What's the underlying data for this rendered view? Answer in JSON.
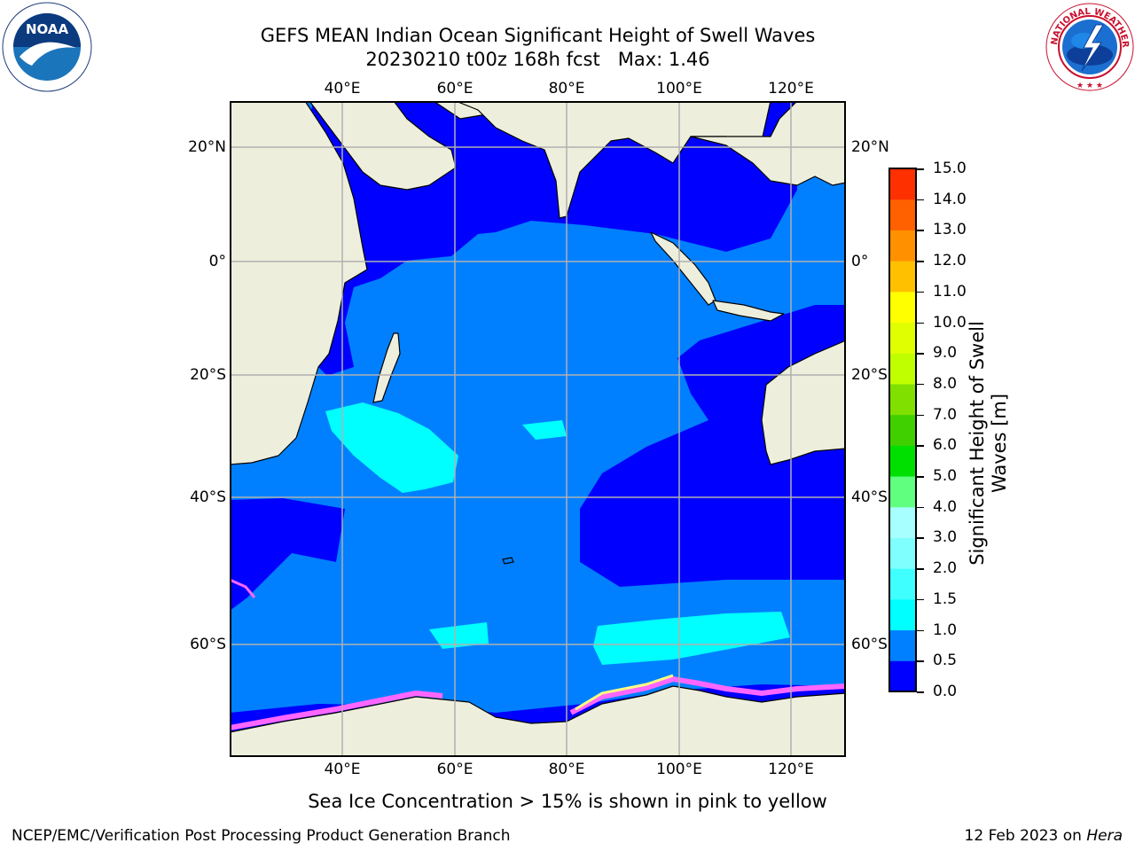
{
  "title": {
    "line1": "GEFS MEAN Indian Ocean Significant Height of Swell Waves",
    "line2": "20230210 t00z 168h fcst   Max: 1.46"
  },
  "logos": {
    "left": {
      "icon": "noaa-logo",
      "text": "NOAA",
      "ring_text": "NATIONAL OCEANIC AND ATMOSPHERIC ADMINISTRATION · U.S. DEPARTMENT OF COMMERCE"
    },
    "right": {
      "icon": "national-weather-service-logo",
      "ring_text": "NATIONAL WEATHER SERVICE"
    }
  },
  "map": {
    "lon_labels": [
      "40°E",
      "60°E",
      "80°E",
      "100°E",
      "120°E"
    ],
    "lat_labels": [
      "20°N",
      "0°",
      "20°S",
      "40°S",
      "60°S"
    ],
    "colors": {
      "land": "#eeeedd",
      "ocean_low": "#0000ff",
      "ocean_mid": "#0080ff",
      "ocean_high": "#00ffff",
      "grid": "#b0b0b0",
      "sea_ice": "#ff66ff"
    }
  },
  "colorbar": {
    "label": "Significant Height of Swell\nWaves [m]",
    "ticks": [
      "0.0",
      "0.5",
      "1.0",
      "1.5",
      "2.0",
      "3.0",
      "4.0",
      "5.0",
      "6.0",
      "7.0",
      "8.0",
      "9.0",
      "10.0",
      "11.0",
      "12.0",
      "13.0",
      "14.0",
      "15.0"
    ],
    "colors": [
      "#0000ff",
      "#0080ff",
      "#00ffff",
      "#40ffff",
      "#80ffff",
      "#a8ffff",
      "#60ff80",
      "#00e000",
      "#40d000",
      "#80e000",
      "#c0ff00",
      "#e0ff00",
      "#ffff00",
      "#ffc000",
      "#ff9000",
      "#ff6000",
      "#ff3000",
      "#ff0000"
    ]
  },
  "caption": "Sea Ice Concentration > 15% is shown in pink to yellow",
  "footer": {
    "left": "NCEP/EMC/Verification Post Processing Product Generation Branch",
    "date": "12 Feb 2023 on ",
    "host": "Hera"
  }
}
